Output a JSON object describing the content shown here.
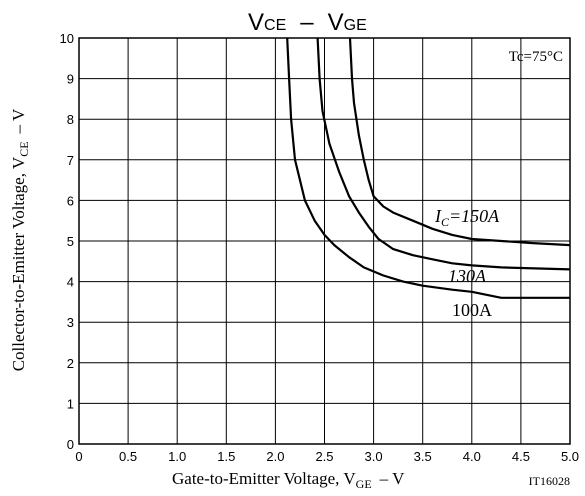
{
  "chart_data": {
    "type": "line",
    "title": {
      "main": "V",
      "sub1": "CE",
      "dash": "–",
      "main2": "V",
      "sub2": "GE"
    },
    "xlabel": {
      "prefix": "Gate-to-Emitter Voltage, V",
      "sub": "GE",
      "suffix": "– V"
    },
    "ylabel": {
      "prefix": "Collector-to-Emitter Voltage, V",
      "sub": "CE",
      "suffix": "– V"
    },
    "xlim": [
      0,
      5.0
    ],
    "ylim": [
      0,
      10
    ],
    "x_ticks": [
      "0",
      "0.5",
      "1.0",
      "1.5",
      "2.0",
      "2.5",
      "3.0",
      "3.5",
      "4.0",
      "4.5",
      "5.0"
    ],
    "y_ticks": [
      "0",
      "1",
      "2",
      "3",
      "4",
      "5",
      "6",
      "7",
      "8",
      "9",
      "10"
    ],
    "grid": true,
    "condition": "Tc=75°C",
    "figure_code": "IT16028",
    "series": [
      {
        "name": "IC=150A",
        "label_parts": {
          "i": "I",
          "sub": "C",
          "rest": "=150A"
        },
        "x": [
          2.76,
          2.78,
          2.8,
          2.85,
          2.9,
          2.95,
          3.0,
          3.1,
          3.2,
          3.4,
          3.6,
          3.8,
          4.0,
          4.3,
          4.6,
          5.0
        ],
        "y": [
          10,
          9.0,
          8.4,
          7.6,
          7.0,
          6.5,
          6.1,
          5.85,
          5.7,
          5.5,
          5.3,
          5.15,
          5.05,
          5.0,
          4.95,
          4.9
        ]
      },
      {
        "name": "130A",
        "x": [
          2.43,
          2.45,
          2.48,
          2.55,
          2.65,
          2.75,
          2.85,
          2.95,
          3.05,
          3.2,
          3.4,
          3.6,
          3.8,
          4.0,
          4.3,
          5.0
        ],
        "y": [
          10,
          9.0,
          8.2,
          7.4,
          6.7,
          6.1,
          5.7,
          5.35,
          5.05,
          4.8,
          4.65,
          4.55,
          4.45,
          4.4,
          4.35,
          4.3
        ]
      },
      {
        "name": "100A",
        "x": [
          2.12,
          2.14,
          2.16,
          2.2,
          2.3,
          2.4,
          2.5,
          2.6,
          2.75,
          2.9,
          3.1,
          3.3,
          3.5,
          3.8,
          4.0,
          4.3,
          5.0
        ],
        "y": [
          10,
          9.0,
          8.0,
          7.0,
          6.0,
          5.5,
          5.15,
          4.9,
          4.6,
          4.35,
          4.15,
          4.0,
          3.9,
          3.8,
          3.75,
          3.6,
          3.6
        ]
      }
    ]
  }
}
